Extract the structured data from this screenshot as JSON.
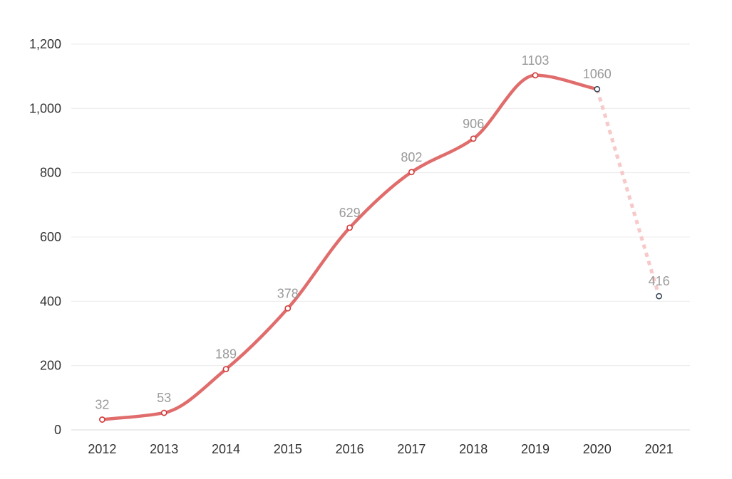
{
  "chart_data": {
    "type": "line",
    "title": "",
    "xlabel": "",
    "ylabel": "",
    "categories": [
      "2012",
      "2013",
      "2014",
      "2015",
      "2016",
      "2017",
      "2018",
      "2019",
      "2020",
      "2021"
    ],
    "values": [
      32,
      53,
      189,
      378,
      629,
      802,
      906,
      1103,
      1060,
      416
    ],
    "data_labels": [
      "32",
      "53",
      "189",
      "378",
      "629",
      "802",
      "906",
      "1103",
      "1060",
      "416"
    ],
    "y_ticks": [
      0,
      200,
      400,
      600,
      800,
      1000,
      1200
    ],
    "y_tick_labels": [
      "0",
      "200",
      "400",
      "600",
      "800",
      "1,000",
      "1,200"
    ],
    "ylim": [
      0,
      1200
    ],
    "grid": true,
    "legend": "none",
    "dashed_from_category": "2020",
    "colors": {
      "line": "#e06c6c",
      "line_dashed": "#f7c9c9",
      "point_fill": "#ffffff",
      "point_stroke": "#d23a3a",
      "point_stroke_projected": "#3a4658"
    }
  }
}
